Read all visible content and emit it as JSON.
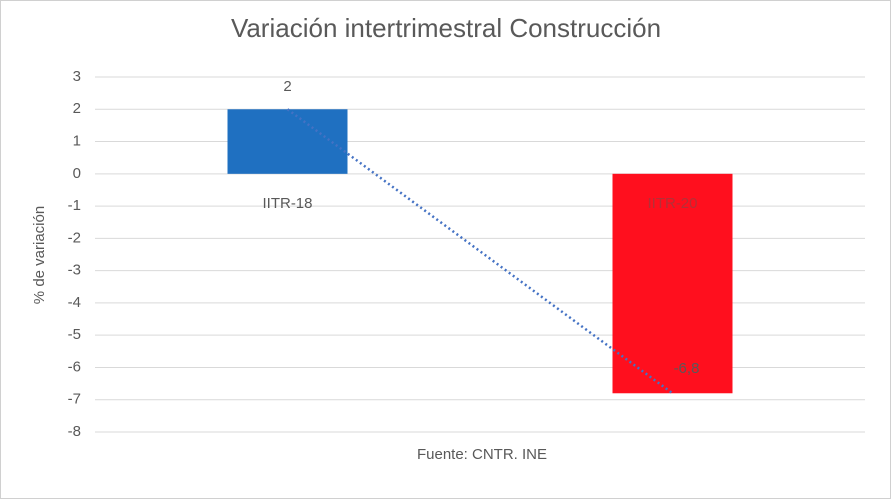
{
  "chart_data": {
    "type": "bar",
    "title": "Variación intertrimestral Construcción",
    "x_label": "Fuente: CNTR. INE",
    "y_label": "% de variación",
    "categories": [
      "IITR-18",
      "IITR-20"
    ],
    "values": [
      2,
      -6.8
    ],
    "value_labels": [
      "2",
      "-6,8"
    ],
    "colors": [
      "#1f70c1",
      "#ff0f1e"
    ],
    "trendline": {
      "color": "#4472c4",
      "style": "dotted"
    },
    "ylim": [
      -8,
      3
    ],
    "yticks": [
      -8,
      -7,
      -6,
      -5,
      -4,
      -3,
      -2,
      -1,
      0,
      1,
      2,
      3
    ],
    "grid": true
  }
}
